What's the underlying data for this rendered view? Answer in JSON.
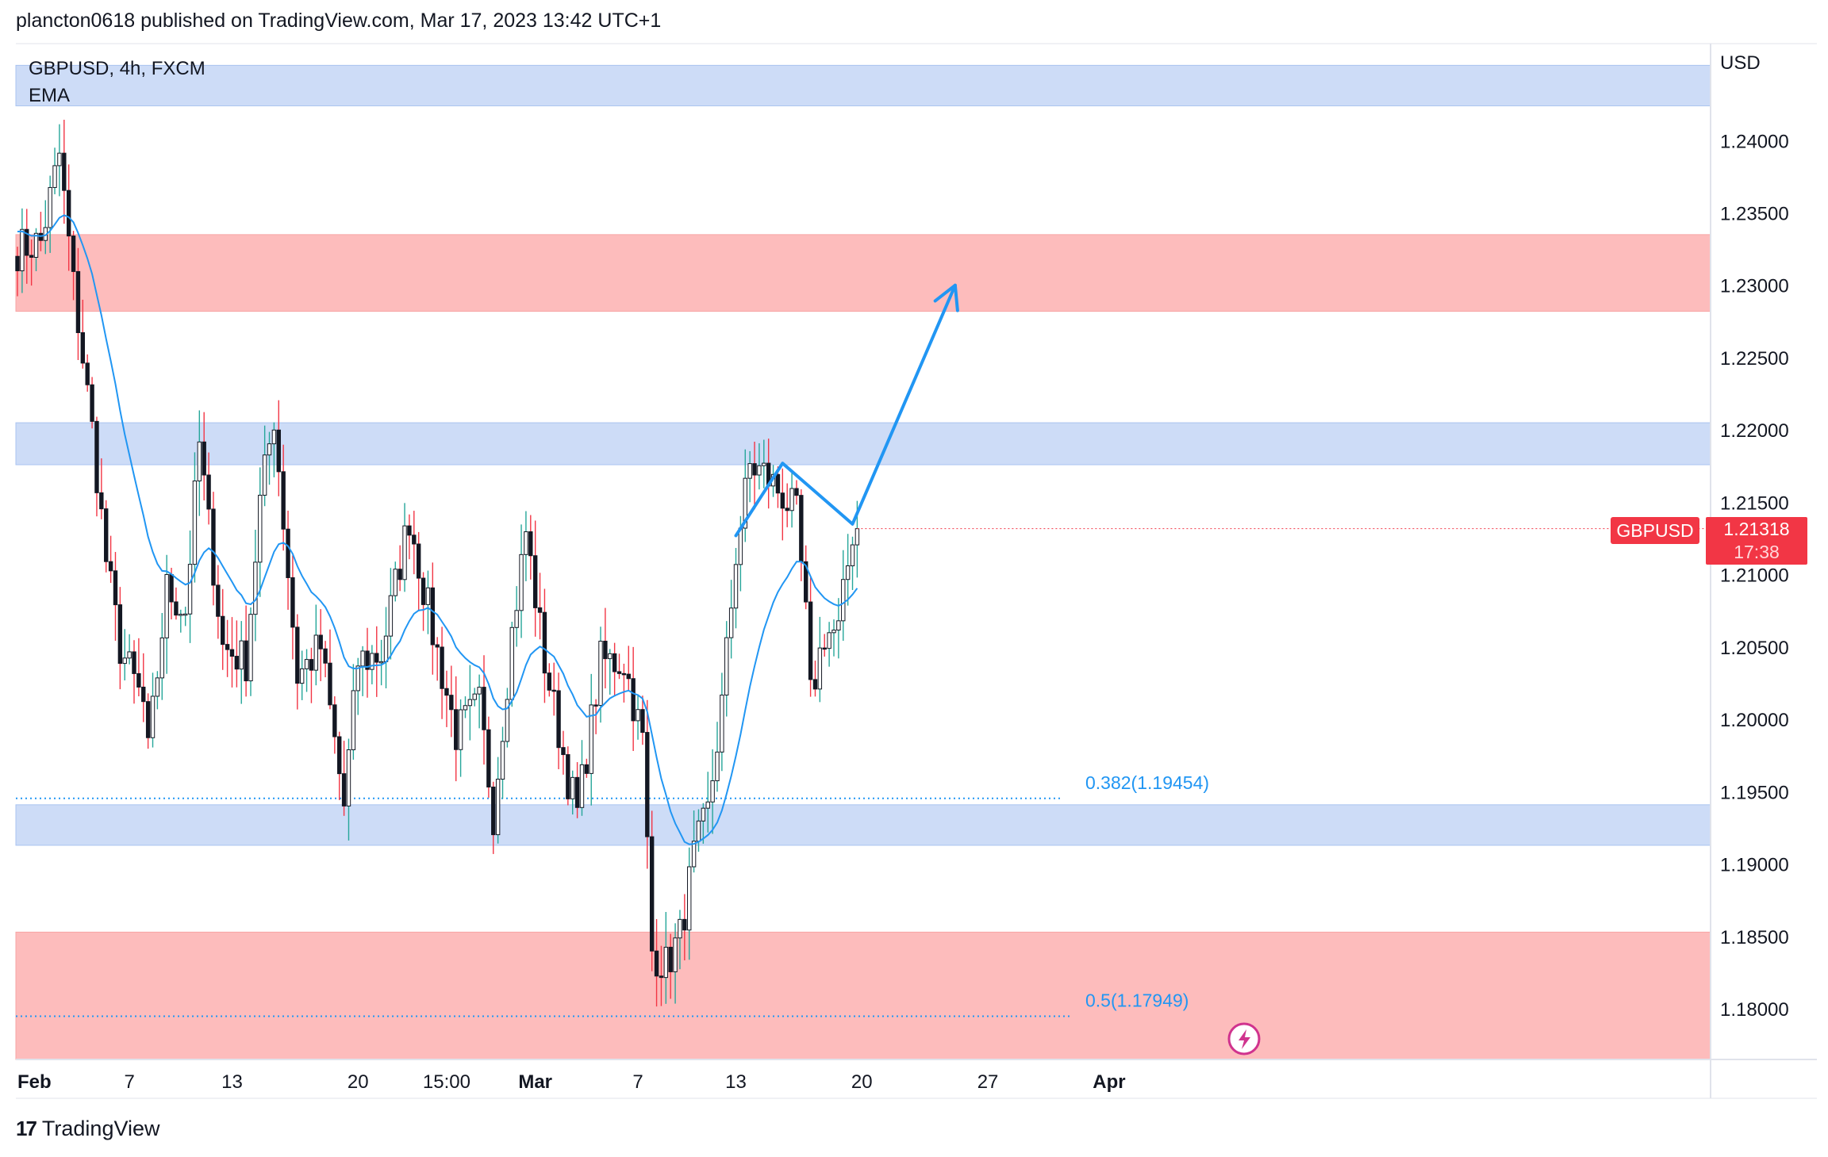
{
  "header": {
    "published_text": "plancton0618 published on TradingView.com, Mar 17, 2023 13:42 UTC+1"
  },
  "legend": {
    "symbol_line": "GBPUSD, 4h, FXCM",
    "indicator": "EMA"
  },
  "footer": {
    "brand": "TradingView",
    "logo_text": "17"
  },
  "axis": {
    "currency": "USD"
  },
  "current": {
    "symbol": "GBPUSD",
    "price": "1.21318",
    "countdown": "17:38"
  },
  "colors": {
    "up": "#131722",
    "down": "#f23645",
    "ema": "#2196f3",
    "blue_zone": "#cddcf7",
    "red_zone": "#fdbcbc",
    "fib": "#2196f3"
  },
  "chart_data": {
    "type": "candlestick",
    "symbol": "GBPUSD",
    "timeframe": "4h",
    "ylim": [
      1.1765,
      1.2467
    ],
    "y_ticks": [
      "1.24000",
      "1.23500",
      "1.23000",
      "1.22500",
      "1.22000",
      "1.21500",
      "1.21000",
      "1.20500",
      "1.20000",
      "1.19500",
      "1.19000",
      "1.18500",
      "1.18000"
    ],
    "x_ticks": [
      {
        "label": "Feb",
        "index": 0,
        "bold": true
      },
      {
        "label": "7",
        "index": 24
      },
      {
        "label": "13",
        "index": 46
      },
      {
        "label": "20",
        "index": 73
      },
      {
        "label": "15:00",
        "index": 92
      },
      {
        "label": "Mar",
        "index": 111,
        "bold": true
      },
      {
        "label": "7",
        "index": 133
      },
      {
        "label": "13",
        "index": 154
      },
      {
        "label": "20",
        "index": 181
      },
      {
        "label": "27",
        "index": 208
      },
      {
        "label": "Apr",
        "index": 234,
        "bold": true
      }
    ],
    "zones": [
      {
        "type": "resistance-blue",
        "from": 1.2424,
        "to": 1.2452
      },
      {
        "type": "supply-red",
        "from": 1.2282,
        "to": 1.2335
      },
      {
        "type": "resistance-blue",
        "from": 1.2176,
        "to": 1.2205
      },
      {
        "type": "support-blue",
        "from": 1.1913,
        "to": 1.1941
      },
      {
        "type": "demand-red",
        "from": 1.1765,
        "to": 1.1853
      }
    ],
    "fib_levels": [
      {
        "label": "0.382(1.19454)",
        "value": 1.19454
      },
      {
        "label": "0.5(1.17949)",
        "value": 1.17949
      }
    ],
    "projection_path": [
      {
        "index": 154,
        "value": 1.2127
      },
      {
        "index": 164,
        "value": 1.2177
      },
      {
        "index": 179,
        "value": 1.2135
      },
      {
        "index": 201,
        "value": 1.23
      }
    ],
    "anchors": [
      {
        "index": 0,
        "value": 1.2325
      },
      {
        "index": 5,
        "value": 1.233
      },
      {
        "index": 9,
        "value": 1.239
      },
      {
        "index": 12,
        "value": 1.23
      },
      {
        "index": 16,
        "value": 1.22
      },
      {
        "index": 19,
        "value": 1.211
      },
      {
        "index": 22,
        "value": 1.205
      },
      {
        "index": 27,
        "value": 1.201
      },
      {
        "index": 28,
        "value": 1.1975
      },
      {
        "index": 32,
        "value": 1.209
      },
      {
        "index": 36,
        "value": 1.2075
      },
      {
        "index": 39,
        "value": 1.219
      },
      {
        "index": 44,
        "value": 1.205
      },
      {
        "index": 49,
        "value": 1.204
      },
      {
        "index": 52,
        "value": 1.215
      },
      {
        "index": 55,
        "value": 1.221
      },
      {
        "index": 60,
        "value": 1.203
      },
      {
        "index": 65,
        "value": 1.205
      },
      {
        "index": 70,
        "value": 1.194
      },
      {
        "index": 73,
        "value": 1.204
      },
      {
        "index": 78,
        "value": 1.2045
      },
      {
        "index": 84,
        "value": 1.214
      },
      {
        "index": 89,
        "value": 1.206
      },
      {
        "index": 94,
        "value": 1.199
      },
      {
        "index": 99,
        "value": 1.201
      },
      {
        "index": 102,
        "value": 1.1935
      },
      {
        "index": 106,
        "value": 1.206
      },
      {
        "index": 109,
        "value": 1.213
      },
      {
        "index": 113,
        "value": 1.204
      },
      {
        "index": 118,
        "value": 1.196
      },
      {
        "index": 120,
        "value": 1.1935
      },
      {
        "index": 125,
        "value": 1.204
      },
      {
        "index": 130,
        "value": 1.204
      },
      {
        "index": 134,
        "value": 1.1985
      },
      {
        "index": 136,
        "value": 1.184
      },
      {
        "index": 139,
        "value": 1.183
      },
      {
        "index": 142,
        "value": 1.185
      },
      {
        "index": 145,
        "value": 1.1905
      },
      {
        "index": 148,
        "value": 1.1935
      },
      {
        "index": 151,
        "value": 1.201
      },
      {
        "index": 154,
        "value": 1.2115
      },
      {
        "index": 157,
        "value": 1.2175
      },
      {
        "index": 160,
        "value": 1.217
      },
      {
        "index": 164,
        "value": 1.2155
      },
      {
        "index": 167,
        "value": 1.214
      },
      {
        "index": 169,
        "value": 1.207
      },
      {
        "index": 170,
        "value": 1.2015
      },
      {
        "index": 173,
        "value": 1.206
      },
      {
        "index": 176,
        "value": 1.206
      },
      {
        "index": 179,
        "value": 1.213
      },
      {
        "index": 180,
        "value": 1.2132
      }
    ],
    "last_index": 180,
    "ema_offset": 0.0055,
    "current_price": 1.21318
  }
}
